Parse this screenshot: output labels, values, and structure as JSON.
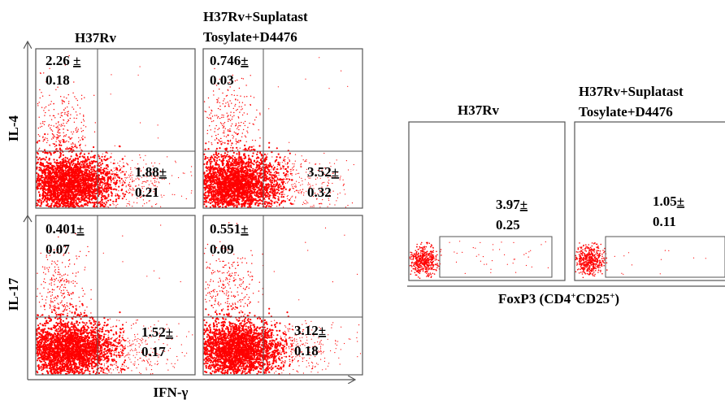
{
  "chart_data": [
    {
      "type": "scatter",
      "panel_group": "IL-4",
      "ylabel": "IL-4",
      "panels": [
        {
          "title": "H37Rv",
          "upper_left": {
            "mean": "2.26",
            "sd": "0.18"
          },
          "lower_right": {
            "mean": "1.88",
            "sd": "0.21"
          }
        },
        {
          "title_line1": "H37Rv+Suplatast",
          "title_line2": "Tosylate+D4476",
          "upper_left": {
            "mean": "0.746",
            "sd": "0.03"
          },
          "lower_right": {
            "mean": "3.52",
            "sd": "0.32"
          }
        }
      ]
    },
    {
      "type": "scatter",
      "panel_group": "IL-17",
      "ylabel": "IL-17",
      "xlabel": "IFN-γ",
      "panels": [
        {
          "upper_left": {
            "mean": "0.401",
            "sd": "0.07"
          },
          "lower_right": {
            "mean": "1.52",
            "sd": "0.17"
          }
        },
        {
          "upper_left": {
            "mean": "0.551",
            "sd": "0.09"
          },
          "lower_right": {
            "mean": "3.12",
            "sd": "0.18"
          }
        }
      ]
    },
    {
      "type": "scatter",
      "panel_group": "FoxP3",
      "xlabel": "FoxP3",
      "xlabel_suffix": "(CD4",
      "xlabel_sup1": "+",
      "xlabel_mid": "CD25",
      "xlabel_sup2": "+",
      "xlabel_end": ")",
      "panels": [
        {
          "title": "H37Rv",
          "gate": {
            "mean": "3.97",
            "sd": "0.25"
          }
        },
        {
          "title_line1": "H37Rv+Suplatast",
          "title_line2": "Tosylate+D4476",
          "gate": {
            "mean": "1.05",
            "sd": "0.11"
          }
        }
      ]
    }
  ],
  "pm_sign": "±",
  "colors": {
    "dots": "#ff0000",
    "frame": "#555555",
    "axis": "#555555"
  }
}
